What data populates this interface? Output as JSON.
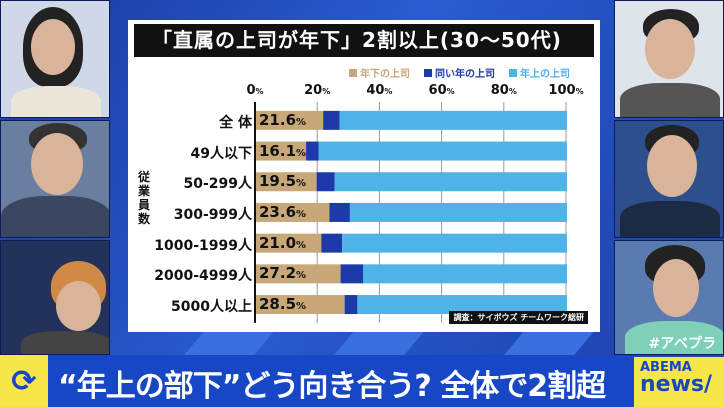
{
  "chart_data": {
    "type": "bar",
    "stacked": true,
    "orientation": "horizontal",
    "title": "「直属の上司が年下」2割以上(30～50代)",
    "ylabel": "従業員数",
    "xlim": [
      0,
      100
    ],
    "xticks": [
      "0",
      "20",
      "40",
      "60",
      "80",
      "100"
    ],
    "tick_unit": "%",
    "categories": [
      "全 体",
      "49人以下",
      "50-299人",
      "300-999人",
      "1000-1999人",
      "2000-4999人",
      "5000人以上"
    ],
    "value_labels": [
      "21.6",
      "16.1",
      "19.5",
      "23.6",
      "21.0",
      "27.2",
      "28.5"
    ],
    "series": [
      {
        "name": "年下の上司",
        "color": "#c8a878",
        "values": [
          21.6,
          16.1,
          19.5,
          23.6,
          21.0,
          27.2,
          28.5
        ]
      },
      {
        "name": "同い年の上司",
        "color": "#1c3aa8",
        "values": [
          5.3,
          4.0,
          5.8,
          6.6,
          6.7,
          7.3,
          4.1
        ]
      },
      {
        "name": "年上の上司",
        "color": "#4fb3e6",
        "values": [
          73.1,
          79.9,
          74.7,
          69.8,
          72.3,
          65.5,
          67.4
        ]
      }
    ],
    "legend_position": "top-right",
    "source": "調査：サイボウズ チームワーク総研"
  },
  "ticker": {
    "headline": "“年上の部下”どう向き合う? 全体で2割超"
  },
  "logo": {
    "line1": "ABEMA",
    "line2": "news/"
  },
  "hashtag": "#アベプラ"
}
